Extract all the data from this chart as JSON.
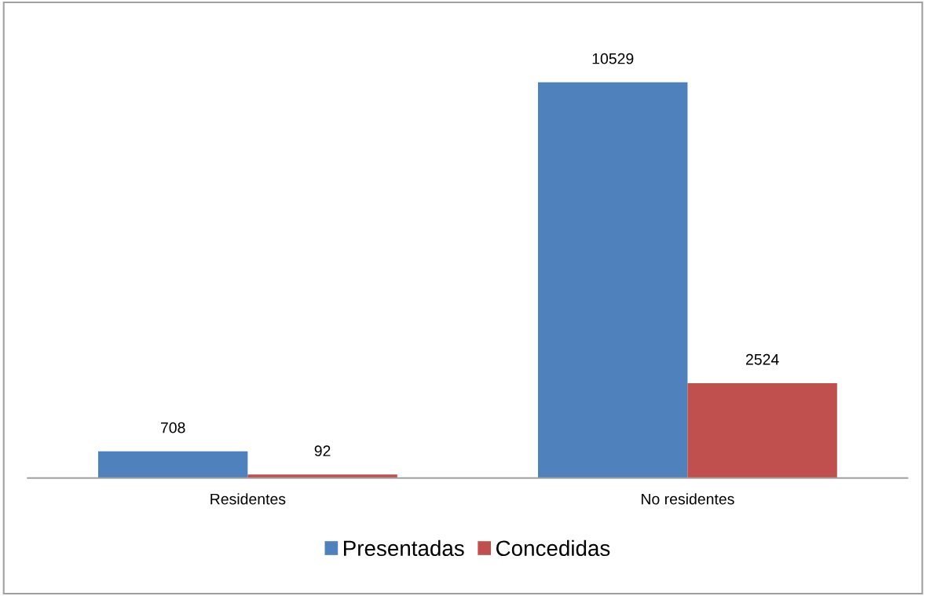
{
  "chart_data": {
    "type": "bar",
    "categories": [
      "Residentes",
      "No residentes"
    ],
    "series": [
      {
        "name": "Presentadas",
        "color": "#4f81bd",
        "values": [
          708,
          10529
        ]
      },
      {
        "name": "Concedidas",
        "color": "#c0504d",
        "values": [
          92,
          2524
        ]
      }
    ],
    "data_labels": true,
    "grid": false,
    "legend": "bottom"
  }
}
